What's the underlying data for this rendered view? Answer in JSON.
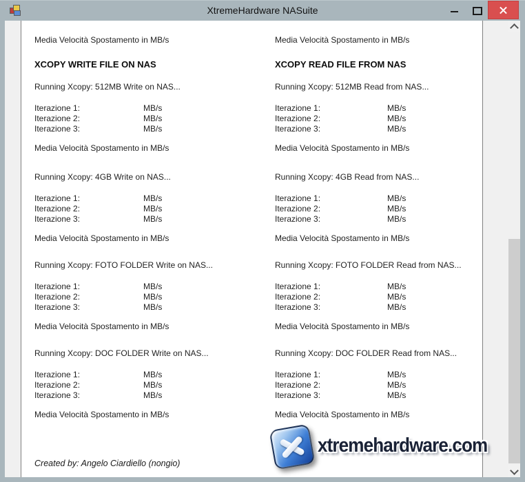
{
  "window": {
    "title": "XtremeHardware NASuite"
  },
  "colors": {
    "titlebar": "#a9b6bc",
    "close_button": "#d94f4f",
    "panel_border": "#808080",
    "scroll_thumb": "#cdcdcd",
    "logo_blue": "#3f7fd6",
    "logo_text": "#1a2236"
  },
  "panel": {
    "columns": [
      {
        "top_media_label": "Media Velocità Spostamento in MB/s",
        "heading": "XCOPY WRITE FILE ON NAS",
        "sections": [
          {
            "running": "Running Xcopy: 512MB Write on NAS...",
            "iterations": [
              "Iterazione 1:",
              "Iterazione 2:",
              "Iterazione 3:"
            ],
            "unit": "MB/s",
            "media_label": "Media Velocità Spostamento in MB/s"
          },
          {
            "running": "Running Xcopy: 4GB Write on NAS...",
            "iterations": [
              "Iterazione 1:",
              "Iterazione 2:",
              "Iterazione 3:"
            ],
            "unit": "MB/s",
            "media_label": "Media Velocità Spostamento in MB/s"
          },
          {
            "running": "Running Xcopy: FOTO FOLDER Write on NAS...",
            "iterations": [
              "Iterazione 1:",
              "Iterazione 2:",
              "Iterazione 3:"
            ],
            "unit": "MB/s",
            "media_label": "Media Velocità Spostamento in MB/s"
          },
          {
            "running": "Running Xcopy: DOC FOLDER Write on NAS...",
            "iterations": [
              "Iterazione 1:",
              "Iterazione 2:",
              "Iterazione 3:"
            ],
            "unit": "MB/s",
            "media_label": "Media Velocità Spostamento in MB/s"
          }
        ]
      },
      {
        "top_media_label": "Media Velocità Spostamento in MB/s",
        "heading": "XCOPY READ FILE FROM NAS",
        "sections": [
          {
            "running": "Running Xcopy: 512MB Read from NAS...",
            "iterations": [
              "Iterazione 1:",
              "Iterazione 2:",
              "Iterazione 3:"
            ],
            "unit": "MB/s",
            "media_label": "Media Velocità Spostamento in MB/s"
          },
          {
            "running": "Running Xcopy: 4GB Read from NAS...",
            "iterations": [
              "Iterazione 1:",
              "Iterazione 2:",
              "Iterazione 3:"
            ],
            "unit": "MB/s",
            "media_label": "Media Velocità Spostamento in MB/s"
          },
          {
            "running": "Running Xcopy: FOTO FOLDER Read from NAS...",
            "iterations": [
              "Iterazione 1:",
              "Iterazione 2:",
              "Iterazione 3:"
            ],
            "unit": "MB/s",
            "media_label": "Media Velocità Spostamento in MB/s"
          },
          {
            "running": "Running Xcopy: DOC FOLDER Read from NAS...",
            "iterations": [
              "Iterazione 1:",
              "Iterazione 2:",
              "Iterazione 3:"
            ],
            "unit": "MB/s",
            "media_label": "Media Velocità Spostamento in MB/s"
          }
        ]
      }
    ],
    "footer_credit": "Created by: Angelo Ciardiello (nongio)",
    "logo_text": "xtremehardware.com"
  }
}
